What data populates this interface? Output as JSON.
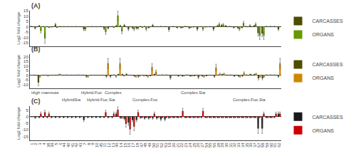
{
  "chart_data": [
    {
      "type": "bar",
      "title": "(A)",
      "ylabel": "Log2 fold change",
      "categories": [
        "1",
        "2",
        "3",
        "4",
        "38",
        "39",
        "5",
        "6",
        "44",
        "40",
        "41",
        "42",
        "43",
        "7",
        "8",
        "9",
        "10",
        "45",
        "11",
        "12",
        "13",
        "46",
        "14",
        "15",
        "16",
        "17",
        "18",
        "47",
        "48",
        "49",
        "50",
        "51",
        "52",
        "53",
        "19",
        "20",
        "21",
        "22",
        "23",
        "24",
        "25",
        "26",
        "27",
        "54",
        "55",
        "56",
        "28",
        "29",
        "30",
        "31",
        "32",
        "33",
        "34",
        "35",
        "36",
        "37",
        "57",
        "58",
        "59",
        "60",
        "61",
        "62"
      ],
      "series": [
        {
          "name": "CARCASSES",
          "color": "#4d4d00",
          "values": [
            0.3,
            -1.5,
            0.8,
            0.2,
            0.1,
            -0.2,
            2.2,
            0.2,
            0.1,
            0.1,
            0.1,
            0.2,
            0.1,
            -2.5,
            0.1,
            0.2,
            0.1,
            0.2,
            -1.8,
            -1.5,
            0.3,
            0.8,
            1.0,
            1.5,
            -2.5,
            -1.2,
            -1.5,
            0.3,
            0.3,
            -0.8,
            1.5,
            0.1,
            0.3,
            0.2,
            -3.0,
            0.2,
            -0.8,
            -0.8,
            0.3,
            -1.2,
            -0.3,
            -2.5,
            0.1,
            -0.3,
            0.1,
            -2.5,
            1.0,
            1.5,
            0.8,
            0.3,
            -0.8,
            -1.2,
            -0.8,
            0.3,
            1.2,
            0.8,
            -6.0,
            -6.5,
            0.3,
            0.3,
            0.3,
            -2.5
          ],
          "errors": [
            0.27,
            0.75,
            0.47,
            0.23,
            0.19,
            0.23,
            1.03,
            0.23,
            0.19,
            0.19,
            0.19,
            0.23,
            0.19,
            1.15,
            0.19,
            0.23,
            0.19,
            0.23,
            0.87,
            0.75,
            0.27,
            0.47,
            0.55,
            0.75,
            1.15,
            0.63,
            0.75,
            0.27,
            0.27,
            0.47,
            0.75,
            0.19,
            0.27,
            0.23,
            1.35,
            0.23,
            0.47,
            0.47,
            0.27,
            0.63,
            0.27,
            1.15,
            0.19,
            0.27,
            0.19,
            1.15,
            0.55,
            0.75,
            0.47,
            0.27,
            0.47,
            0.63,
            0.47,
            0.27,
            0.63,
            0.47,
            2.55,
            2.75,
            0.27,
            0.27,
            0.27,
            1.15
          ]
        },
        {
          "name": "ORGANS",
          "color": "#669900",
          "values": [
            0.0,
            0.0,
            -4.0,
            -11.0,
            -0.5,
            0.0,
            -0.5,
            0.0,
            0.0,
            0.0,
            0.0,
            0.0,
            0.0,
            -2.5,
            0.0,
            0.0,
            0.0,
            0.0,
            -5.0,
            0.0,
            -0.5,
            10.5,
            -4.5,
            0.0,
            0.0,
            -2.5,
            -1.5,
            -0.5,
            -2.5,
            0.0,
            0.0,
            0.0,
            0.0,
            0.0,
            0.0,
            0.0,
            0.0,
            -0.5,
            0.0,
            -0.5,
            0.0,
            0.0,
            -2.5,
            0.0,
            0.0,
            0.0,
            2.5,
            2.0,
            0.0,
            0.0,
            0.0,
            -2.5,
            3.5,
            0.0,
            0.0,
            2.5,
            -8.5,
            -8.5,
            0.0,
            0.0,
            0.0,
            0.0
          ],
          "errors": [
            0.15,
            0.15,
            1.75,
            4.55,
            0.35,
            0.15,
            0.35,
            0.15,
            0.15,
            0.15,
            0.15,
            0.15,
            0.15,
            1.15,
            0.15,
            0.15,
            0.15,
            0.15,
            2.15,
            0.15,
            0.35,
            4.35,
            1.95,
            0.15,
            0.15,
            1.15,
            0.75,
            0.35,
            1.15,
            0.15,
            0.15,
            0.15,
            0.15,
            0.15,
            0.15,
            0.15,
            0.15,
            0.35,
            0.15,
            0.35,
            0.15,
            0.15,
            1.15,
            0.15,
            0.15,
            0.15,
            1.15,
            0.95,
            0.15,
            0.15,
            0.15,
            1.15,
            1.55,
            0.15,
            0.15,
            1.15,
            3.55,
            3.55,
            0.15,
            0.15,
            0.15,
            0.15
          ]
        }
      ],
      "ylim": [
        -18,
        15
      ],
      "yticks": [
        -15,
        -10,
        -5,
        0,
        5,
        10,
        15
      ],
      "grid": false,
      "legend": "right",
      "tick_labels": "y"
    },
    {
      "type": "bar",
      "title": "(B)",
      "ylabel": "Log2 fold change",
      "categories": [
        "1",
        "2",
        "3",
        "4",
        "38",
        "39",
        "5",
        "6",
        "44",
        "40",
        "41",
        "42",
        "43",
        "7",
        "8",
        "9",
        "10",
        "45",
        "11",
        "12",
        "13",
        "46",
        "14",
        "15",
        "16",
        "17",
        "18",
        "47",
        "48",
        "49",
        "50",
        "51",
        "52",
        "53",
        "19",
        "20",
        "21",
        "22",
        "23",
        "24",
        "25",
        "26",
        "27",
        "54",
        "55",
        "56",
        "28",
        "29",
        "30",
        "31",
        "32",
        "33",
        "34",
        "35",
        "36",
        "37",
        "57",
        "58",
        "59",
        "60",
        "61",
        "62"
      ],
      "series": [
        {
          "name": "CARCASSES",
          "color": "#4d4d00",
          "values": [
            0.0,
            -8.0,
            0.0,
            0.0,
            0.0,
            0.0,
            0.4,
            0.1,
            0.3,
            0.1,
            0.1,
            0.3,
            0.1,
            -1.5,
            0.0,
            0.0,
            0.0,
            0.0,
            -1.5,
            -1.5,
            0.3,
            0.8,
            0.8,
            1.2,
            0.0,
            -0.8,
            -1.5,
            0.0,
            -0.3,
            -0.3,
            0.8,
            0.0,
            0.3,
            0.3,
            -3.0,
            0.0,
            -0.8,
            -0.8,
            0.3,
            -0.8,
            -0.3,
            -2.5,
            -0.8,
            -0.3,
            0.0,
            -1.5,
            0.3,
            0.8,
            0.3,
            0.3,
            -0.8,
            -0.8,
            -0.8,
            0.3,
            0.8,
            0.8,
            -3.5,
            -3.5,
            0.3,
            0.3,
            0.3,
            -1.5
          ],
          "errors": [
            0.15,
            3.35,
            0.15,
            0.15,
            0.15,
            0.15,
            0.31,
            0.19,
            0.27,
            0.19,
            0.19,
            0.27,
            0.19,
            0.75,
            0.15,
            0.15,
            0.15,
            0.15,
            0.75,
            0.75,
            0.27,
            0.47,
            0.47,
            0.63,
            0.15,
            0.47,
            0.75,
            0.15,
            0.27,
            0.27,
            0.47,
            0.15,
            0.27,
            0.27,
            1.35,
            0.15,
            0.47,
            0.47,
            0.27,
            0.47,
            0.27,
            1.15,
            0.47,
            0.27,
            0.15,
            0.75,
            0.27,
            0.47,
            0.27,
            0.27,
            0.47,
            0.47,
            0.47,
            0.27,
            0.47,
            0.47,
            1.55,
            1.55,
            0.27,
            0.27,
            0.27,
            0.75
          ]
        },
        {
          "name": "ORGANS",
          "color": "#cc8800",
          "values": [
            0.0,
            -1.5,
            0.0,
            -0.5,
            0.0,
            0.0,
            0.8,
            0.0,
            0.0,
            0.0,
            0.0,
            0.0,
            0.0,
            -1.5,
            0.0,
            0.0,
            0.0,
            0.0,
            13.0,
            0.0,
            -1.5,
            13.0,
            -0.5,
            0.0,
            0.0,
            -1.5,
            -0.5,
            -0.5,
            -1.5,
            9.0,
            4.0,
            0.0,
            0.0,
            0.0,
            0.0,
            0.0,
            0.0,
            -0.5,
            0.0,
            -0.5,
            0.0,
            0.0,
            -1.5,
            0.0,
            0.0,
            8.5,
            1.5,
            1.5,
            0.0,
            0.0,
            0.0,
            -1.5,
            2.5,
            0.0,
            0.0,
            1.5,
            -1.5,
            -1.5,
            0.0,
            0.0,
            0.0,
            13.0
          ],
          "errors": [
            0.15,
            0.75,
            0.15,
            0.35,
            0.15,
            0.15,
            0.47,
            0.15,
            0.15,
            0.15,
            0.15,
            0.15,
            0.15,
            0.75,
            0.15,
            0.15,
            0.15,
            0.15,
            5.35,
            0.15,
            0.75,
            5.35,
            0.35,
            0.15,
            0.15,
            0.75,
            0.35,
            0.35,
            0.75,
            3.75,
            1.75,
            0.15,
            0.15,
            0.15,
            0.15,
            0.15,
            0.15,
            0.35,
            0.15,
            0.35,
            0.15,
            0.15,
            0.75,
            0.15,
            0.15,
            3.55,
            0.75,
            0.75,
            0.15,
            0.15,
            0.15,
            0.75,
            1.15,
            0.15,
            0.15,
            0.75,
            0.75,
            0.75,
            0.15,
            0.15,
            0.15,
            5.35
          ]
        }
      ],
      "ylim": [
        -14,
        23
      ],
      "yticks": [
        -10,
        -5,
        0,
        5,
        10,
        15,
        20
      ],
      "annotations": [
        {
          "text": "High mannose",
          "x": 2.5
        },
        {
          "text": "HybridSia",
          "x": 9.0
        },
        {
          "text": "Hybrid.Fuc",
          "x": 14.0
        },
        {
          "text": "Hybrid.Fuc.Sia",
          "x": 16.5
        },
        {
          "text": "Complex",
          "x": 19.5
        },
        {
          "text": "Complex.Fuc",
          "x": 27.5
        },
        {
          "text": "Complex.Sia",
          "x": 39.5
        },
        {
          "text": "Complex.Fuc.Sia",
          "x": 53.5
        }
      ],
      "grid": false,
      "legend": "right",
      "tick_labels": "y"
    },
    {
      "type": "bar",
      "title": "(C)",
      "ylabel": "Log2 fold change",
      "categories": [
        "1",
        "2",
        "3",
        "4",
        "38",
        "39",
        "5",
        "6",
        "44",
        "40",
        "41",
        "42",
        "43",
        "7",
        "8",
        "9",
        "10",
        "45",
        "11",
        "12",
        "13",
        "46",
        "14",
        "15",
        "16",
        "17",
        "18",
        "47",
        "48",
        "49",
        "50",
        "51",
        "52",
        "53",
        "19",
        "20",
        "21",
        "22",
        "23",
        "24",
        "25",
        "26",
        "27",
        "54",
        "55",
        "56",
        "28",
        "29",
        "30",
        "31",
        "32",
        "33",
        "34",
        "35",
        "36",
        "37",
        "57",
        "58",
        "59",
        "60",
        "61",
        "62"
      ],
      "series": [
        {
          "name": "CARCASSES",
          "color": "#1a1a1a",
          "values": [
            0.0,
            -0.8,
            -0.4,
            -0.4,
            -0.4,
            -0.4,
            -0.4,
            -0.4,
            -0.4,
            -0.4,
            -0.4,
            -0.4,
            -0.4,
            -2.5,
            -0.4,
            -0.4,
            -0.4,
            -0.4,
            -0.4,
            -0.4,
            -0.4,
            2.5,
            -0.8,
            -1.5,
            -4.5,
            -2.5,
            -2.5,
            -0.8,
            -1.2,
            -1.2,
            -1.2,
            -1.2,
            -2.0,
            -2.0,
            -0.8,
            -0.4,
            -0.4,
            -0.4,
            -0.4,
            -0.4,
            -0.4,
            -0.4,
            -0.4,
            -0.4,
            -0.4,
            -0.4,
            -0.4,
            -0.4,
            -0.4,
            -0.4,
            -0.4,
            -0.4,
            -0.4,
            -0.4,
            -0.4,
            -0.4,
            -9.0,
            -9.0,
            -0.4,
            -0.4,
            -0.4,
            2.5
          ],
          "errors": [
            0.15,
            0.47,
            0.31,
            0.31,
            0.31,
            0.31,
            0.31,
            0.31,
            0.31,
            0.31,
            0.31,
            0.31,
            0.31,
            1.15,
            0.31,
            0.31,
            0.31,
            0.31,
            0.31,
            0.31,
            0.31,
            1.15,
            0.47,
            0.75,
            1.95,
            1.15,
            1.15,
            0.47,
            0.63,
            0.63,
            0.63,
            0.63,
            0.95,
            0.95,
            0.47,
            0.31,
            0.31,
            0.31,
            0.31,
            0.31,
            0.31,
            0.31,
            0.31,
            0.31,
            0.31,
            0.31,
            0.31,
            0.31,
            0.31,
            0.31,
            0.31,
            0.31,
            0.31,
            0.31,
            0.31,
            0.31,
            3.75,
            3.75,
            0.31,
            0.31,
            0.31,
            1.15
          ]
        },
        {
          "name": "ORGANS",
          "color": "#cc0000",
          "values": [
            0.0,
            0.0,
            2.5,
            3.5,
            2.5,
            0.0,
            0.0,
            0.0,
            0.0,
            0.0,
            0.0,
            0.0,
            0.0,
            0.0,
            0.0,
            0.0,
            0.0,
            0.0,
            3.5,
            0.0,
            2.5,
            5.5,
            -0.8,
            -5.5,
            -9.5,
            -7.5,
            3.5,
            -0.4,
            -0.4,
            -0.4,
            2.5,
            -0.4,
            -0.4,
            -0.4,
            -0.4,
            -0.4,
            -0.4,
            4.5,
            -0.4,
            -0.4,
            -0.4,
            -0.4,
            4.5,
            -0.4,
            -0.4,
            -0.4,
            -0.4,
            -0.4,
            -0.4,
            -0.4,
            -0.4,
            -0.4,
            -0.4,
            -0.4,
            -0.4,
            -0.4,
            -0.4,
            2.5,
            -0.4,
            -0.4,
            2.5,
            2.5
          ],
          "errors": [
            0.15,
            0.15,
            1.15,
            1.55,
            1.15,
            0.15,
            0.15,
            0.15,
            0.15,
            0.15,
            0.15,
            0.15,
            0.15,
            0.15,
            0.15,
            0.15,
            0.15,
            0.15,
            1.55,
            0.15,
            1.15,
            2.35,
            0.47,
            2.35,
            3.95,
            3.15,
            1.55,
            0.31,
            0.31,
            0.31,
            1.15,
            0.31,
            0.31,
            0.31,
            0.31,
            0.31,
            0.31,
            1.95,
            0.31,
            0.31,
            0.31,
            0.31,
            1.95,
            0.31,
            0.31,
            0.31,
            0.31,
            0.31,
            0.31,
            0.31,
            0.31,
            0.31,
            0.31,
            0.31,
            0.31,
            0.31,
            0.31,
            1.15,
            0.31,
            0.31,
            1.15,
            1.15
          ]
        }
      ],
      "ylim": [
        -18,
        8
      ],
      "yticks": [
        -15,
        -10,
        -5,
        0,
        5
      ],
      "grid": false,
      "legend": "right"
    }
  ]
}
